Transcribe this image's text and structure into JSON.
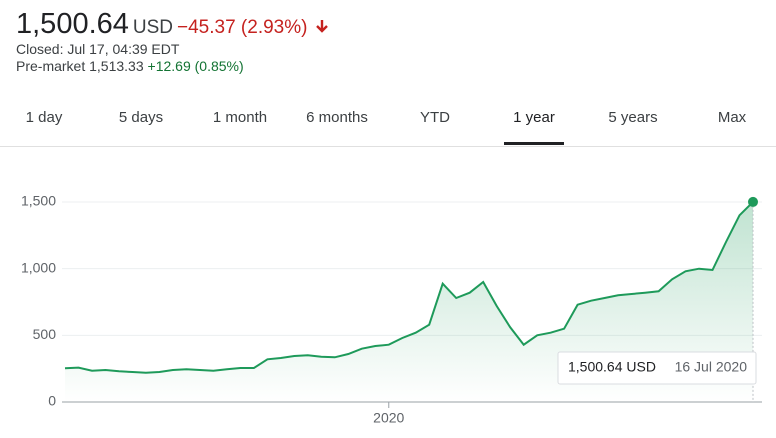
{
  "header": {
    "price": "1,500.64",
    "currency": "USD",
    "change": "−45.37 (2.93%)",
    "closed": "Closed: Jul 17, 04:39 EDT",
    "premarket": "Pre-market 1,513.33",
    "premarket_change": "+12.69 (0.85%)"
  },
  "tabs": [
    {
      "label": "1 day"
    },
    {
      "label": "5 days"
    },
    {
      "label": "1 month"
    },
    {
      "label": "6 months"
    },
    {
      "label": "YTD"
    },
    {
      "label": "1 year",
      "selected": true
    },
    {
      "label": "5 years"
    },
    {
      "label": "Max"
    }
  ],
  "chart_data": {
    "type": "line",
    "color": "#1e9a5a",
    "categories": [
      null,
      null,
      null,
      null,
      null,
      null,
      null,
      null,
      null,
      null,
      null,
      null,
      null,
      null,
      null,
      null,
      null,
      null,
      null,
      null,
      null,
      null,
      null,
      null,
      "2020",
      null,
      null,
      null,
      null,
      null,
      null,
      null,
      null,
      null,
      null,
      null,
      null,
      null,
      null,
      null,
      null,
      null,
      null,
      null,
      null,
      null,
      null,
      null,
      null,
      null,
      null,
      null
    ],
    "values": [
      253,
      258,
      235,
      240,
      230,
      225,
      220,
      225,
      240,
      245,
      240,
      235,
      245,
      255,
      255,
      320,
      330,
      345,
      350,
      340,
      335,
      360,
      400,
      420,
      430,
      480,
      520,
      580,
      887,
      780,
      820,
      900,
      720,
      560,
      430,
      500,
      520,
      550,
      730,
      760,
      780,
      800,
      810,
      820,
      830,
      920,
      980,
      1000,
      990,
      1200,
      1400,
      1500.64
    ],
    "ylim": [
      0,
      1650
    ],
    "yticks": [
      0,
      500,
      {
        "value": 1000,
        "label": "1,000"
      },
      {
        "value": 1500,
        "label": "1,500"
      }
    ],
    "grid": true,
    "tooltip": {
      "label": "1,500.64 USD",
      "date": "16 Jul 2020"
    }
  }
}
